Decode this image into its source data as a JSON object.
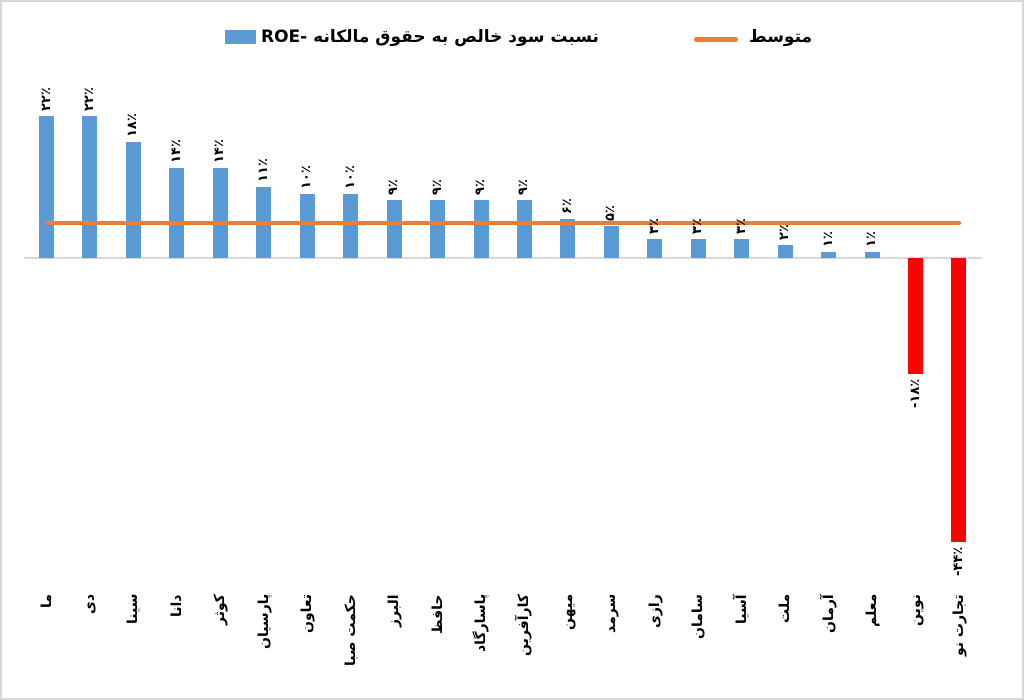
{
  "chart_data": {
    "type": "bar",
    "title": "",
    "xlabel": "",
    "ylabel": "",
    "grid": false,
    "legend_position": "top",
    "legend": [
      {
        "label": "نسبت سود خالص به حقوق مالکانه -ROE",
        "marker": "square",
        "color": "#5B9BD5"
      },
      {
        "label": "متوسط",
        "marker": "line",
        "color": "#ED7D31"
      }
    ],
    "categories": [
      "ما",
      "دی",
      "سینا",
      "دانا",
      "کوثر",
      "پارسیان",
      "تعاون",
      "حکمت صبا",
      "البرز",
      "حافظ",
      "پاسارگاد",
      "کارآفرین",
      "میهن",
      "سرمد",
      "رازی",
      "سامان",
      "آسیا",
      "ملت",
      "آرمان",
      "معلم",
      "نوین",
      "تجارت نو"
    ],
    "values": [
      22,
      22,
      18,
      14,
      14,
      11,
      10,
      10,
      9,
      9,
      9,
      9,
      6,
      5,
      3,
      3,
      3,
      2,
      1,
      1,
      -18,
      -44
    ],
    "value_labels": [
      "۲۲٪",
      "۲۲٪",
      "۱۸٪",
      "۱۴٪",
      "۱۴٪",
      "۱۱٪",
      "۱۰٪",
      "۱۰٪",
      "۹٪",
      "۹٪",
      "۹٪",
      "۹٪",
      "۶٪",
      "۵٪",
      "۳٪",
      "۳٪",
      "۳٪",
      "۲٪",
      "۱٪",
      "۱٪",
      "-۱۸٪",
      "-۴۴٪"
    ],
    "average_value": 5.4,
    "ylim": [
      -49,
      30
    ],
    "colors": {
      "positive_bar": "#5B9BD5",
      "negative_bar": "#FF0000",
      "average_line": "#ED7D31",
      "axis_line": "#D9D9D9",
      "label_text": "#000000"
    }
  }
}
